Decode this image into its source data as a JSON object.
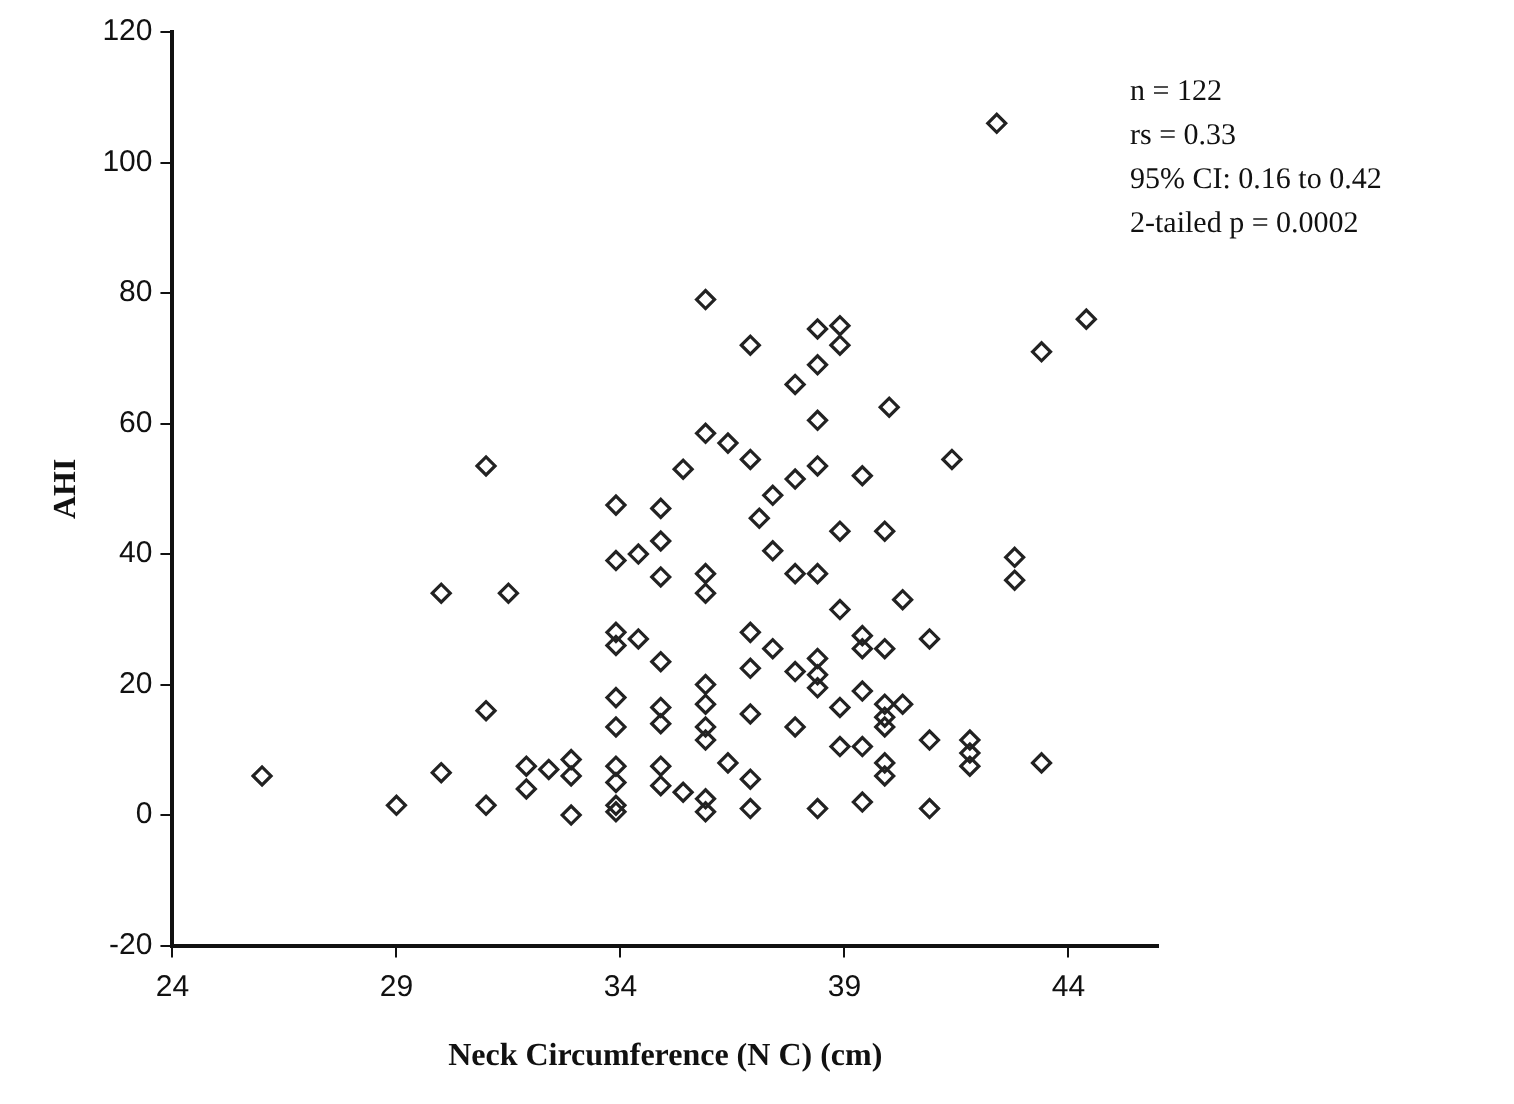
{
  "chart_data": {
    "type": "scatter",
    "xlabel": "Neck Circumference (N C) (cm)",
    "ylabel": "AHI",
    "annotations": [
      "n = 122",
      "rs = 0.33",
      "95% CI: 0.16 to 0.42",
      "2-tailed p = 0.0002"
    ],
    "xlim": [
      24,
      46
    ],
    "xticks": [
      24,
      29,
      34,
      39,
      44
    ],
    "ylim": [
      -20,
      120
    ],
    "yticks": [
      -20,
      0,
      20,
      40,
      60,
      80,
      100,
      120
    ],
    "grid": false,
    "legend": false,
    "marker": "diamond",
    "series": [
      {
        "color": "#222222",
        "x": [
          26,
          29,
          30,
          30,
          31,
          31,
          31,
          31.5,
          31.9,
          31.9,
          32.4,
          32.9,
          32.9,
          32.9,
          33.9,
          33.9,
          33.9,
          33.9,
          33.9,
          33.9,
          33.9,
          33.9,
          33.9,
          33.9,
          34.4,
          34.4,
          34.9,
          34.9,
          34.9,
          34.9,
          34.9,
          34.9,
          34.9,
          34.9,
          35.9,
          36.9,
          38.4,
          38.9,
          38.9,
          38.4,
          37.9,
          40,
          38.4,
          35.9,
          36.4,
          36.9,
          38.4,
          37.9,
          35.4,
          39.4,
          37.4,
          37.1,
          38.9,
          39.9,
          35.9,
          35.9,
          37.4,
          37.9,
          38.4,
          38.9,
          40.3,
          36.9,
          37.4,
          36.9,
          39.4,
          39.4,
          39.9,
          37.9,
          38.4,
          38.4,
          38.4,
          35.9,
          35.9,
          35.9,
          35.9,
          36.9,
          37.9,
          38.9,
          39.4,
          39.9,
          39.9,
          39.9,
          40.3,
          35.4,
          35.9,
          35.9,
          36.4,
          36.9,
          36.9,
          38.9,
          39.4,
          39.9,
          39.9,
          38.4,
          39.4,
          42.4,
          44.4,
          43.4,
          41.4,
          42.8,
          42.8,
          40.9,
          40.9,
          41.8,
          41.8,
          41.8,
          43.4,
          40.9
        ],
        "values": [
          6,
          1.5,
          6.5,
          34,
          53.5,
          16,
          1.5,
          34,
          7.5,
          4,
          7,
          8.5,
          6,
          0,
          47.5,
          39,
          28,
          26,
          18,
          13.5,
          7.5,
          5,
          1.5,
          0.5,
          40,
          27,
          47,
          42,
          36.5,
          23.5,
          16.5,
          14,
          7.5,
          4.5,
          79,
          72,
          74.5,
          75,
          72,
          69,
          66,
          62.5,
          60.5,
          58.5,
          57,
          54.5,
          53.5,
          51.5,
          53,
          52,
          49,
          45.5,
          43.5,
          43.5,
          37,
          34,
          40.5,
          37,
          37,
          31.5,
          33,
          28,
          25.5,
          22.5,
          27.5,
          25.5,
          25.5,
          22,
          24,
          21.5,
          19.5,
          20,
          17,
          13.5,
          11.5,
          15.5,
          13.5,
          16.5,
          19,
          17,
          15,
          13.5,
          17,
          3.5,
          2.5,
          0.5,
          8,
          5.5,
          1,
          10.5,
          10.5,
          8,
          6,
          1,
          2,
          106,
          76,
          71,
          54.5,
          39.5,
          36,
          27,
          11.5,
          11.5,
          9.5,
          7.5,
          8,
          1
        ]
      }
    ]
  }
}
